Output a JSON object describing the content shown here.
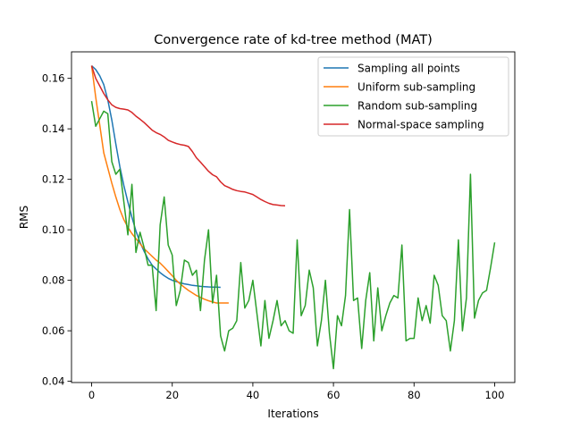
{
  "chart_data": {
    "type": "line",
    "title": "Convergence rate of kd-tree method (MAT)",
    "xlabel": "Iterations",
    "ylabel": "RMS",
    "xlim": [
      -5,
      105
    ],
    "ylim": [
      0.0395,
      0.1705
    ],
    "xticks": [
      0,
      20,
      40,
      60,
      80,
      100
    ],
    "xtick_labels": [
      "0",
      "20",
      "40",
      "60",
      "80",
      "100"
    ],
    "yticks": [
      0.04,
      0.06,
      0.08,
      0.1,
      0.12,
      0.14,
      0.16
    ],
    "ytick_labels": [
      "0.04",
      "0.06",
      "0.08",
      "0.10",
      "0.12",
      "0.14",
      "0.16"
    ],
    "grid": false,
    "legend_position": "top-right",
    "series": [
      {
        "name": "Sampling all points",
        "color": "#1f77b4",
        "x": [
          0,
          1,
          2,
          3,
          4,
          5,
          6,
          7,
          8,
          9,
          10,
          11,
          12,
          13,
          14,
          15,
          16,
          17,
          18,
          19,
          20,
          21,
          22,
          23,
          24,
          25,
          26,
          27,
          28,
          29,
          30,
          31,
          32
        ],
        "y": [
          0.165,
          0.1635,
          0.161,
          0.1575,
          0.1515,
          0.1435,
          0.134,
          0.125,
          0.1175,
          0.111,
          0.105,
          0.0995,
          0.095,
          0.0915,
          0.0885,
          0.086,
          0.0845,
          0.083,
          0.0818,
          0.0808,
          0.08,
          0.0795,
          0.079,
          0.0786,
          0.0783,
          0.078,
          0.0778,
          0.0776,
          0.0775,
          0.0774,
          0.0773,
          0.0773,
          0.0772
        ]
      },
      {
        "name": "Uniform sub-sampling",
        "color": "#ff7f0e",
        "x": [
          0,
          1,
          2,
          3,
          4,
          5,
          6,
          7,
          8,
          9,
          10,
          11,
          12,
          13,
          14,
          15,
          16,
          17,
          18,
          19,
          20,
          21,
          22,
          23,
          24,
          25,
          26,
          27,
          28,
          29,
          30,
          31,
          32,
          33,
          34
        ],
        "y": [
          0.165,
          0.1525,
          0.1415,
          0.1305,
          0.1245,
          0.1185,
          0.113,
          0.108,
          0.104,
          0.101,
          0.0985,
          0.0965,
          0.0945,
          0.0925,
          0.091,
          0.0895,
          0.088,
          0.0868,
          0.0852,
          0.0835,
          0.0818,
          0.08,
          0.0785,
          0.0772,
          0.076,
          0.075,
          0.074,
          0.0732,
          0.0725,
          0.0719,
          0.0714,
          0.071,
          0.071,
          0.071,
          0.071
        ]
      },
      {
        "name": "Random sub-sampling",
        "color": "#2ca02c",
        "x": [
          0,
          1,
          2,
          3,
          4,
          5,
          6,
          7,
          8,
          9,
          10,
          11,
          12,
          13,
          14,
          15,
          16,
          17,
          18,
          19,
          20,
          21,
          22,
          23,
          24,
          25,
          26,
          27,
          28,
          29,
          30,
          31,
          32,
          33,
          34,
          35,
          36,
          37,
          38,
          39,
          40,
          41,
          42,
          43,
          44,
          45,
          46,
          47,
          48,
          49,
          50,
          51,
          52,
          53,
          54,
          55,
          56,
          57,
          58,
          59,
          60,
          61,
          62,
          63,
          64,
          65,
          66,
          67,
          68,
          69,
          70,
          71,
          72,
          73,
          74,
          75,
          76,
          77,
          78,
          79,
          80,
          81,
          82,
          83,
          84,
          85,
          86,
          87,
          88,
          89,
          90,
          91,
          92,
          93,
          94,
          95,
          96,
          97,
          98,
          99,
          100
        ],
        "y": [
          0.151,
          0.141,
          0.144,
          0.147,
          0.146,
          0.127,
          0.122,
          0.124,
          0.111,
          0.098,
          0.118,
          0.091,
          0.099,
          0.093,
          0.086,
          0.086,
          0.068,
          0.102,
          0.113,
          0.094,
          0.09,
          0.07,
          0.076,
          0.088,
          0.087,
          0.082,
          0.084,
          0.068,
          0.088,
          0.1,
          0.071,
          0.082,
          0.058,
          0.052,
          0.06,
          0.061,
          0.064,
          0.087,
          0.069,
          0.072,
          0.08,
          0.067,
          0.054,
          0.072,
          0.057,
          0.064,
          0.072,
          0.062,
          0.064,
          0.06,
          0.059,
          0.096,
          0.066,
          0.07,
          0.084,
          0.077,
          0.054,
          0.064,
          0.08,
          0.059,
          0.045,
          0.066,
          0.062,
          0.074,
          0.108,
          0.072,
          0.073,
          0.053,
          0.072,
          0.083,
          0.056,
          0.077,
          0.06,
          0.066,
          0.071,
          0.074,
          0.073,
          0.094,
          0.056,
          0.057,
          0.057,
          0.073,
          0.064,
          0.07,
          0.063,
          0.082,
          0.078,
          0.066,
          0.064,
          0.052,
          0.064,
          0.096,
          0.06,
          0.073,
          0.122,
          0.065,
          0.072,
          0.075,
          0.076,
          0.085,
          0.095
        ]
      },
      {
        "name": "Normal-space sampling",
        "color": "#d62728",
        "x": [
          0,
          1,
          2,
          3,
          4,
          5,
          6,
          7,
          8,
          9,
          10,
          11,
          12,
          13,
          14,
          15,
          16,
          17,
          18,
          19,
          20,
          21,
          22,
          23,
          24,
          25,
          26,
          27,
          28,
          29,
          30,
          31,
          32,
          33,
          34,
          35,
          36,
          37,
          38,
          39,
          40,
          41,
          42,
          43,
          44,
          45,
          46,
          47,
          48
        ],
        "y": [
          0.165,
          0.16,
          0.157,
          0.154,
          0.1515,
          0.1495,
          0.1485,
          0.148,
          0.1478,
          0.1475,
          0.1465,
          0.145,
          0.1438,
          0.1425,
          0.141,
          0.1395,
          0.1385,
          0.1378,
          0.1368,
          0.1355,
          0.1348,
          0.1342,
          0.1338,
          0.1335,
          0.133,
          0.131,
          0.1285,
          0.1268,
          0.125,
          0.1232,
          0.1218,
          0.121,
          0.119,
          0.1175,
          0.1168,
          0.116,
          0.1155,
          0.1152,
          0.115,
          0.1145,
          0.114,
          0.113,
          0.112,
          0.1112,
          0.1105,
          0.11,
          0.1098,
          0.1096,
          0.1095
        ]
      }
    ]
  }
}
